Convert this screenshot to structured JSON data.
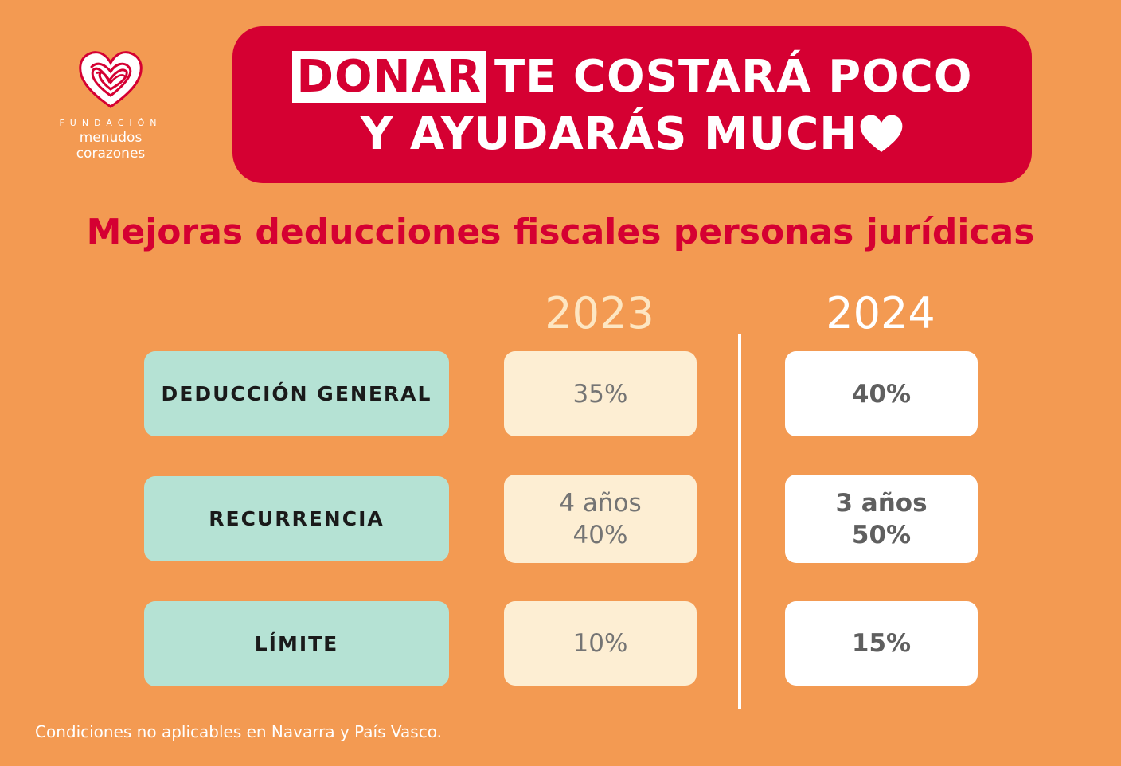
{
  "logo": {
    "org_top": "FUNDACIÓN",
    "org_name": "menudos corazones",
    "icon": "heart-scribble-icon"
  },
  "banner": {
    "highlight": "DONAR",
    "line1_rest": "TE COSTARÁ POCO",
    "line2": "Y AYUDARÁS MUCH",
    "heart_icon": "heart-icon"
  },
  "subtitle": "Mejoras deducciones fiscales personas jurídicas",
  "years": [
    "2023",
    "2024"
  ],
  "rows": [
    {
      "label": "DEDUCCIÓN GENERAL",
      "y2023": [
        "35%"
      ],
      "y2024": [
        "40%"
      ]
    },
    {
      "label": "RECURRENCIA",
      "y2023": [
        "4 años",
        "40%"
      ],
      "y2024": [
        "3 años",
        "50%"
      ]
    },
    {
      "label": "LÍMITE",
      "y2023": [
        "10%"
      ],
      "y2024": [
        "15%"
      ]
    }
  ],
  "footnote": "Condiciones no aplicables en Navarra y País Vasco.",
  "colors": {
    "background": "#f39a52",
    "accent_red": "#d50032",
    "label_mint": "#b5e2d4",
    "cell_2023": "#fdeed3",
    "cell_2024": "#ffffff"
  }
}
